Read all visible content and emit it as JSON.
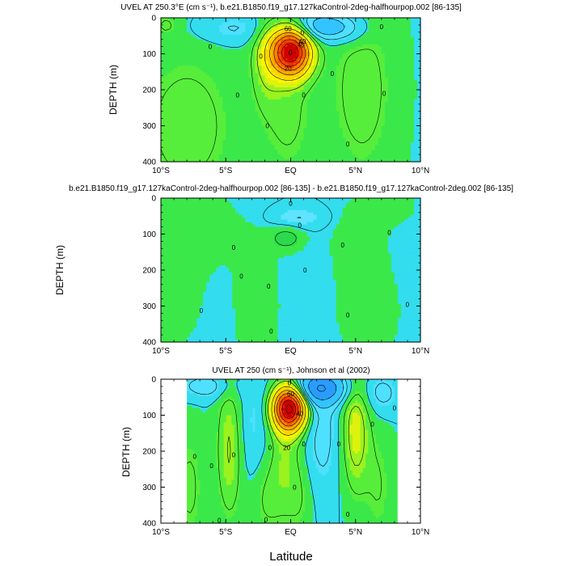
{
  "figure": {
    "shared_xlabel": "Latitude"
  },
  "chart_data": [
    {
      "type": "heatmap",
      "title": "UVEL AT 250.3°E (cm s⁻¹), b.e21.B1850.f19_g17.127kaControl-2deg-halfhourpop.002 [86-135]",
      "ylabel": "DEPTH (m)",
      "xlabel": "",
      "x_ticks": [
        "10°S",
        "5°S",
        "EQ",
        "5°N",
        "10°N"
      ],
      "y_ticks": [
        "0",
        "100",
        "200",
        "300",
        "400"
      ],
      "xlim": [
        -10,
        10
      ],
      "ylim": [
        400,
        0
      ],
      "contour_labels": [
        {
          "text": "60",
          "x": -0.2,
          "y": 30
        },
        {
          "text": "40",
          "x": 0.9,
          "y": 65
        },
        {
          "text": "40",
          "x": 0.8,
          "y": 75
        },
        {
          "text": "20",
          "x": -0.2,
          "y": 140
        },
        {
          "text": "0",
          "x": 0.9,
          "y": 42
        },
        {
          "text": "0",
          "x": -2.3,
          "y": 107
        },
        {
          "text": "0",
          "x": -6.2,
          "y": 80
        },
        {
          "text": "0",
          "x": -4.1,
          "y": 215
        },
        {
          "text": "0",
          "x": -1.8,
          "y": 300
        },
        {
          "text": "0",
          "x": 1.0,
          "y": 215
        },
        {
          "text": "0",
          "x": 3.2,
          "y": 155
        },
        {
          "text": "0",
          "x": 4.4,
          "y": 350
        },
        {
          "text": "0",
          "x": 7.2,
          "y": 210
        },
        {
          "text": "0",
          "x": 7.0,
          "y": 25
        }
      ],
      "jets": [
        {
          "x": 0.0,
          "y": 95,
          "sx": 1.05,
          "sy": 45,
          "amp": 68
        },
        {
          "x": -1.9,
          "y": 120,
          "sx": 0.8,
          "sy": 90,
          "amp": 8
        },
        {
          "x": -0.2,
          "y": 260,
          "sx": 1.4,
          "sy": 140,
          "amp": 6
        },
        {
          "x": 2.2,
          "y": 25,
          "sx": 1.6,
          "sy": 28,
          "amp": -16
        },
        {
          "x": 4.5,
          "y": 30,
          "sx": 1.2,
          "sy": 30,
          "amp": -6
        },
        {
          "x": -4.5,
          "y": 30,
          "sx": 2.0,
          "sy": 30,
          "amp": -6
        },
        {
          "x": 5.5,
          "y": 200,
          "sx": 1.8,
          "sy": 180,
          "amp": 7
        },
        {
          "x": -8.0,
          "y": 300,
          "sx": 2.8,
          "sy": 160,
          "amp": 7
        },
        {
          "x": -9.6,
          "y": 20,
          "sx": 0.6,
          "sy": 20,
          "amp": 5
        }
      ]
    },
    {
      "type": "heatmap",
      "title": "b.e21.B1850.f19_g17.127kaControl-2deg-halfhourpop.002 [86-135] - b.e21.B1850.f19_g17.127kaControl-2deg.002 [86-135]",
      "ylabel": "DEPTH (m)",
      "xlabel": "",
      "x_ticks": [
        "10°S",
        "5°S",
        "EQ",
        "5°N",
        "10°N"
      ],
      "y_ticks": [
        "0",
        "100",
        "200",
        "300",
        "400"
      ],
      "xlim": [
        -10,
        10
      ],
      "ylim": [
        400,
        0
      ],
      "contour_labels": [
        {
          "text": "0",
          "x": 0.0,
          "y": 15
        },
        {
          "text": "0",
          "x": 0.7,
          "y": 75
        },
        {
          "text": "0",
          "x": -4.4,
          "y": 137
        },
        {
          "text": "0",
          "x": -3.8,
          "y": 217
        },
        {
          "text": "0",
          "x": -1.7,
          "y": 245
        },
        {
          "text": "0",
          "x": 1.1,
          "y": 200
        },
        {
          "text": "0",
          "x": -6.9,
          "y": 312
        },
        {
          "text": "0",
          "x": -1.5,
          "y": 370
        },
        {
          "text": "0",
          "x": 4.0,
          "y": 130
        },
        {
          "text": "0",
          "x": 4.4,
          "y": 325
        },
        {
          "text": "0",
          "x": 7.6,
          "y": 95
        },
        {
          "text": "0",
          "x": 9.0,
          "y": 295
        }
      ],
      "jets": [
        {
          "x": -0.3,
          "y": 110,
          "sx": 0.9,
          "sy": 25,
          "amp": 1.4
        },
        {
          "x": 0.5,
          "y": 55,
          "sx": 1.4,
          "sy": 20,
          "amp": -1.1
        },
        {
          "x": -7.5,
          "y": 80,
          "sx": 2.4,
          "sy": 90,
          "amp": 0.6
        },
        {
          "x": -9.0,
          "y": 280,
          "sx": 1.5,
          "sy": 100,
          "amp": 0.6
        },
        {
          "x": -2.6,
          "y": 300,
          "sx": 1.2,
          "sy": 140,
          "amp": 0.7
        },
        {
          "x": 5.2,
          "y": 120,
          "sx": 1.5,
          "sy": 80,
          "amp": 0.6
        },
        {
          "x": 6.0,
          "y": 320,
          "sx": 1.8,
          "sy": 100,
          "amp": 0.6
        },
        {
          "x": 7.8,
          "y": 20,
          "sx": 1.5,
          "sy": 40,
          "amp": 0.5
        }
      ]
    },
    {
      "type": "heatmap",
      "title": "UVEL AT 250 (cm s⁻¹), Johnson et al (2002)",
      "ylabel": "DEPTH (m)",
      "xlabel": "Latitude",
      "x_ticks": [
        "10°S",
        "5°S",
        "EQ",
        "5°N",
        "10°N"
      ],
      "y_ticks": [
        "0",
        "100",
        "200",
        "300",
        "400"
      ],
      "xlim": [
        -10,
        10
      ],
      "ylim": [
        400,
        0
      ],
      "data_xlim": [
        -8,
        8.2
      ],
      "contour_labels": [
        {
          "text": "60",
          "x": 0.0,
          "y": 40
        },
        {
          "text": "0",
          "x": -0.1,
          "y": 10
        },
        {
          "text": "40",
          "x": 0.7,
          "y": 95
        },
        {
          "text": "20",
          "x": -0.3,
          "y": 190
        },
        {
          "text": "0",
          "x": -1.6,
          "y": 190
        },
        {
          "text": "0",
          "x": 1.0,
          "y": 180
        },
        {
          "text": "0",
          "x": -7.4,
          "y": 215
        },
        {
          "text": "0",
          "x": -6.1,
          "y": 240
        },
        {
          "text": "0",
          "x": -4.4,
          "y": 210
        },
        {
          "text": "0",
          "x": 0.3,
          "y": 300
        },
        {
          "text": "0",
          "x": -1.9,
          "y": 390
        },
        {
          "text": "0",
          "x": -5.5,
          "y": 392
        },
        {
          "text": "0",
          "x": 4.4,
          "y": 375
        },
        {
          "text": "0",
          "x": 3.7,
          "y": 180
        },
        {
          "text": "0",
          "x": 6.3,
          "y": 125
        },
        {
          "text": "0",
          "x": 8.0,
          "y": 80
        }
      ],
      "jets": [
        {
          "x": -0.1,
          "y": 80,
          "sx": 0.85,
          "sy": 42,
          "amp": 72
        },
        {
          "x": -0.5,
          "y": 230,
          "sx": 0.9,
          "sy": 120,
          "amp": 8
        },
        {
          "x": -4.7,
          "y": 190,
          "sx": 0.7,
          "sy": 140,
          "amp": 11
        },
        {
          "x": 5.0,
          "y": 140,
          "sx": 0.75,
          "sy": 120,
          "amp": 14
        },
        {
          "x": 2.2,
          "y": 25,
          "sx": 1.5,
          "sy": 30,
          "amp": -28
        },
        {
          "x": 2.4,
          "y": 150,
          "sx": 1.0,
          "sy": 120,
          "amp": -7
        },
        {
          "x": -2.8,
          "y": 120,
          "sx": 1.0,
          "sy": 120,
          "amp": -5
        },
        {
          "x": -6.5,
          "y": 20,
          "sx": 1.5,
          "sy": 25,
          "amp": -8
        },
        {
          "x": 7.0,
          "y": 40,
          "sx": 1.0,
          "sy": 40,
          "amp": -7
        },
        {
          "x": -7.8,
          "y": 300,
          "sx": 0.8,
          "sy": 120,
          "amp": 6
        },
        {
          "x": 6.8,
          "y": 300,
          "sx": 0.8,
          "sy": 120,
          "amp": 5
        },
        {
          "x": -2.0,
          "y": 330,
          "sx": 0.8,
          "sy": 80,
          "amp": 5
        },
        {
          "x": 0.8,
          "y": 330,
          "sx": 0.7,
          "sy": 80,
          "amp": 4
        }
      ]
    }
  ]
}
